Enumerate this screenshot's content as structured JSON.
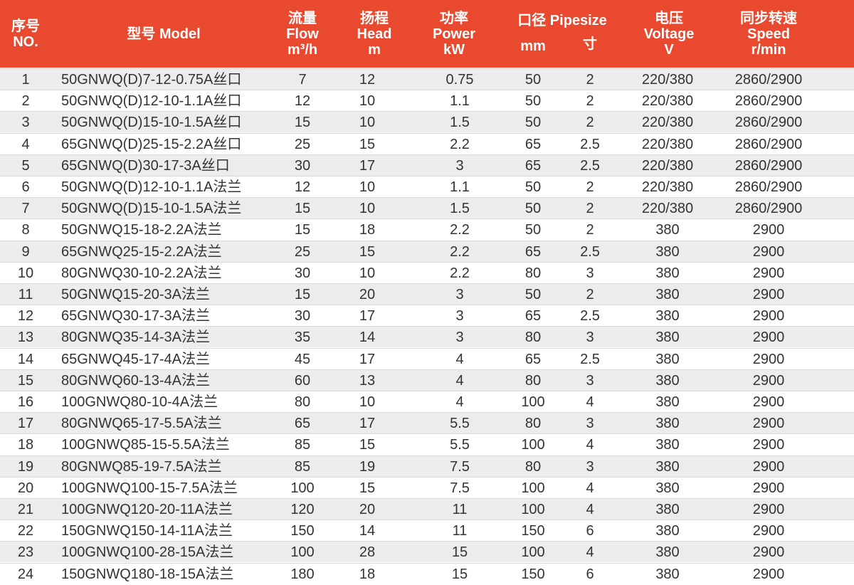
{
  "table": {
    "header": {
      "no": [
        "序号",
        "NO."
      ],
      "model": [
        "型号 Model"
      ],
      "flow": [
        "流量",
        "Flow",
        "m³/h"
      ],
      "head": [
        "扬程",
        "Head",
        "m"
      ],
      "power": [
        "功率",
        "Power",
        "kW"
      ],
      "pipesize": [
        "口径 Pipesize",
        "mm",
        "寸"
      ],
      "voltage": [
        "电压",
        "Voltage",
        "V"
      ],
      "speed": [
        "同步转速",
        "Speed",
        "r/min"
      ]
    },
    "rows": [
      [
        "1",
        "50GNWQ(D)7-12-0.75A丝口",
        "7",
        "12",
        "0.75",
        "50",
        "2",
        "220/380",
        "2860/2900"
      ],
      [
        "2",
        "50GNWQ(D)12-10-1.1A丝口",
        "12",
        "10",
        "1.1",
        "50",
        "2",
        "220/380",
        "2860/2900"
      ],
      [
        "3",
        "50GNWQ(D)15-10-1.5A丝口",
        "15",
        "10",
        "1.5",
        "50",
        "2",
        "220/380",
        "2860/2900"
      ],
      [
        "4",
        "65GNWQ(D)25-15-2.2A丝口",
        "25",
        "15",
        "2.2",
        "65",
        "2.5",
        "220/380",
        "2860/2900"
      ],
      [
        "5",
        "65GNWQ(D)30-17-3A丝口",
        "30",
        "17",
        "3",
        "65",
        "2.5",
        "220/380",
        "2860/2900"
      ],
      [
        "6",
        "50GNWQ(D)12-10-1.1A法兰",
        "12",
        "10",
        "1.1",
        "50",
        "2",
        "220/380",
        "2860/2900"
      ],
      [
        "7",
        "50GNWQ(D)15-10-1.5A法兰",
        "15",
        "10",
        "1.5",
        "50",
        "2",
        "220/380",
        "2860/2900"
      ],
      [
        "8",
        "50GNWQ15-18-2.2A法兰",
        "15",
        "18",
        "2.2",
        "50",
        "2",
        "380",
        "2900"
      ],
      [
        "9",
        "65GNWQ25-15-2.2A法兰",
        "25",
        "15",
        "2.2",
        "65",
        "2.5",
        "380",
        "2900"
      ],
      [
        "10",
        "80GNWQ30-10-2.2A法兰",
        "30",
        "10",
        "2.2",
        "80",
        "3",
        "380",
        "2900"
      ],
      [
        "11",
        "50GNWQ15-20-3A法兰",
        "15",
        "20",
        "3",
        "50",
        "2",
        "380",
        "2900"
      ],
      [
        "12",
        "65GNWQ30-17-3A法兰",
        "30",
        "17",
        "3",
        "65",
        "2.5",
        "380",
        "2900"
      ],
      [
        "13",
        "80GNWQ35-14-3A法兰",
        "35",
        "14",
        "3",
        "80",
        "3",
        "380",
        "2900"
      ],
      [
        "14",
        "65GNWQ45-17-4A法兰",
        "45",
        "17",
        "4",
        "65",
        "2.5",
        "380",
        "2900"
      ],
      [
        "15",
        "80GNWQ60-13-4A法兰",
        "60",
        "13",
        "4",
        "80",
        "3",
        "380",
        "2900"
      ],
      [
        "16",
        "100GNWQ80-10-4A法兰",
        "80",
        "10",
        "4",
        "100",
        "4",
        "380",
        "2900"
      ],
      [
        "17",
        "80GNWQ65-17-5.5A法兰",
        "65",
        "17",
        "5.5",
        "80",
        "3",
        "380",
        "2900"
      ],
      [
        "18",
        "100GNWQ85-15-5.5A法兰",
        "85",
        "15",
        "5.5",
        "100",
        "4",
        "380",
        "2900"
      ],
      [
        "19",
        "80GNWQ85-19-7.5A法兰",
        "85",
        "19",
        "7.5",
        "80",
        "3",
        "380",
        "2900"
      ],
      [
        "20",
        "100GNWQ100-15-7.5A法兰",
        "100",
        "15",
        "7.5",
        "100",
        "4",
        "380",
        "2900"
      ],
      [
        "21",
        "100GNWQ120-20-11A法兰",
        "120",
        "20",
        "11",
        "100",
        "4",
        "380",
        "2900"
      ],
      [
        "22",
        "150GNWQ150-14-11A法兰",
        "150",
        "14",
        "11",
        "150",
        "6",
        "380",
        "2900"
      ],
      [
        "23",
        "100GNWQ100-28-15A法兰",
        "100",
        "28",
        "15",
        "100",
        "4",
        "380",
        "2900"
      ],
      [
        "24",
        "150GNWQ180-18-15A法兰",
        "180",
        "18",
        "15",
        "150",
        "6",
        "380",
        "2900"
      ]
    ]
  }
}
